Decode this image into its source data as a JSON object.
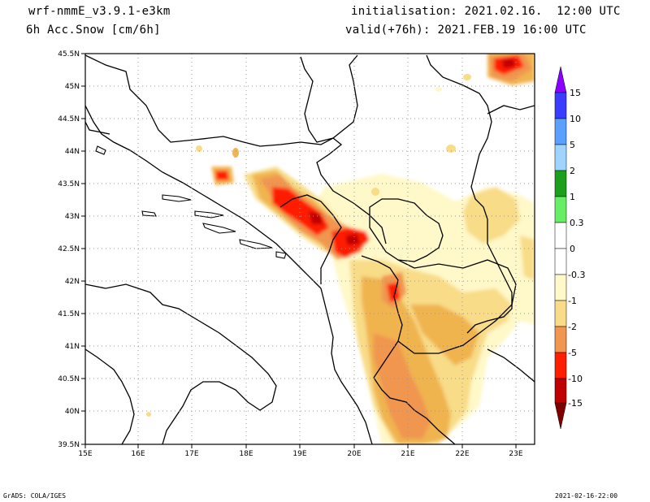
{
  "header": {
    "model": "wrf-nmmE_v3.9.1-e3km",
    "field": "6h Acc.Snow [cm/6h]",
    "init": "initialisation: 2021.02.16.  12:00 UTC",
    "valid": "valid(+76h): 2021.FEB.19 16:00 UTC"
  },
  "map": {
    "lon_range": [
      15,
      23.3
    ],
    "lat_range": [
      39.5,
      45.5
    ],
    "lon_ticks": [
      "15E",
      "16E",
      "17E",
      "18E",
      "19E",
      "20E",
      "21E",
      "22E",
      "23E"
    ],
    "lat_ticks": [
      "39.5N",
      "40N",
      "40.5N",
      "41N",
      "41.5N",
      "42N",
      "42.5N",
      "43N",
      "43.5N",
      "44N",
      "44.5N",
      "45N",
      "45.5N"
    ]
  },
  "legend": {
    "labels": [
      "15",
      "10",
      "5",
      "2",
      "1",
      "0.3",
      "0",
      "-0.3",
      "-1",
      "-2",
      "-5",
      "-10",
      "-15"
    ],
    "colors": [
      "#8b00ff",
      "#3a3dff",
      "#5aa0ff",
      "#9fd4ff",
      "#1aa01a",
      "#66ee66",
      "#ffffff",
      "#fff8c8",
      "#f8dc88",
      "#f0b450",
      "#f09650",
      "#ff1e00",
      "#c00000",
      "#800000"
    ]
  },
  "footer": {
    "left": "GrADS: COLA/IGES",
    "right": "2021-02-16-22:00"
  },
  "colors": {
    "snow_lightest": "#fff8c8",
    "snow_light": "#f8dc88",
    "snow_mid": "#f0b450",
    "snow_orange": "#f09650",
    "snow_red": "#ff1e00",
    "snow_darkred": "#c00000"
  }
}
